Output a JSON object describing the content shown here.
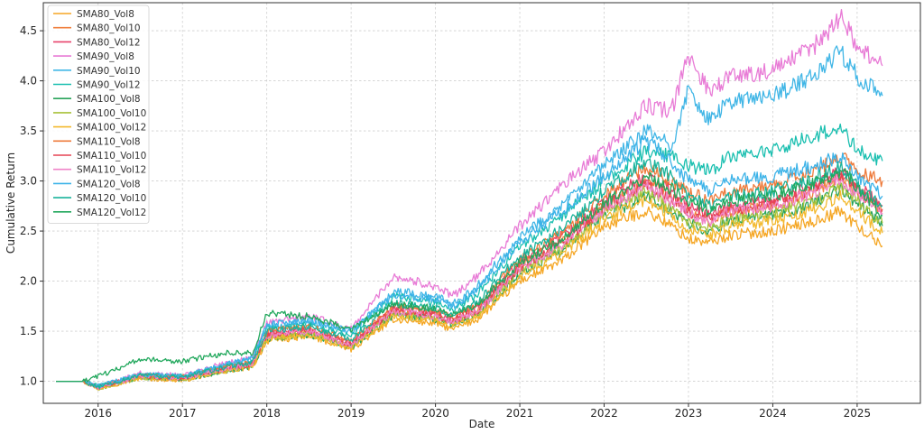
{
  "chart_data": {
    "type": "line",
    "title": "",
    "xlabel": "Date",
    "ylabel": "Cumulative Return",
    "xlim": [
      2015.35,
      2025.75
    ],
    "ylim": [
      0.78,
      4.78
    ],
    "x_ticks": [
      2016,
      2017,
      2018,
      2019,
      2020,
      2021,
      2022,
      2023,
      2024,
      2025
    ],
    "x_tick_labels": [
      "2016",
      "2017",
      "2018",
      "2019",
      "2020",
      "2021",
      "2022",
      "2023",
      "2024",
      "2025"
    ],
    "y_ticks": [
      1.0,
      1.5,
      2.0,
      2.5,
      3.0,
      3.5,
      4.0,
      4.5
    ],
    "y_tick_labels": [
      "1.0",
      "1.5",
      "2.0",
      "2.5",
      "3.0",
      "3.5",
      "4.0",
      "4.5"
    ],
    "grid": true,
    "legend_position": "top-left",
    "x": [
      2015.5,
      2015.83,
      2016.0,
      2016.5,
      2017.0,
      2017.5,
      2017.83,
      2018.0,
      2018.5,
      2019.0,
      2019.5,
      2020.0,
      2020.2,
      2020.5,
      2021.0,
      2021.5,
      2022.0,
      2022.5,
      2022.8,
      2023.0,
      2023.25,
      2023.5,
      2024.0,
      2024.5,
      2024.8,
      2025.0,
      2025.3
    ],
    "series": [
      {
        "name": "SMA80_Vol8",
        "color": "#f5a623",
        "values": [
          1.0,
          1.0,
          0.93,
          1.03,
          1.01,
          1.1,
          1.14,
          1.4,
          1.45,
          1.32,
          1.62,
          1.58,
          1.52,
          1.62,
          2.0,
          2.2,
          2.55,
          2.7,
          2.55,
          2.42,
          2.38,
          2.46,
          2.5,
          2.6,
          2.7,
          2.55,
          2.35
        ]
      },
      {
        "name": "SMA80_Vol10",
        "color": "#f07f3c",
        "values": [
          1.0,
          1.0,
          0.94,
          1.05,
          1.03,
          1.12,
          1.17,
          1.45,
          1.5,
          1.36,
          1.7,
          1.65,
          1.58,
          1.7,
          2.15,
          2.4,
          2.75,
          3.0,
          2.85,
          2.7,
          2.6,
          2.7,
          2.75,
          2.9,
          3.05,
          2.9,
          2.7
        ]
      },
      {
        "name": "SMA80_Vol12",
        "color": "#e8436b",
        "values": [
          1.0,
          1.0,
          0.94,
          1.06,
          1.04,
          1.13,
          1.18,
          1.48,
          1.52,
          1.38,
          1.72,
          1.68,
          1.62,
          1.74,
          2.2,
          2.45,
          2.8,
          3.05,
          2.9,
          2.75,
          2.65,
          2.75,
          2.8,
          2.95,
          3.1,
          2.95,
          2.75
        ]
      },
      {
        "name": "SMA90_Vol8",
        "color": "#e87bd6",
        "values": [
          1.0,
          1.0,
          0.95,
          1.08,
          1.06,
          1.18,
          1.24,
          1.58,
          1.65,
          1.52,
          2.05,
          1.95,
          1.85,
          2.05,
          2.55,
          2.95,
          3.3,
          3.75,
          3.7,
          4.25,
          3.9,
          4.05,
          4.1,
          4.35,
          4.65,
          4.35,
          4.15
        ]
      },
      {
        "name": "SMA90_Vol10",
        "color": "#41b6e6",
        "values": [
          1.0,
          1.0,
          0.95,
          1.07,
          1.05,
          1.16,
          1.22,
          1.55,
          1.6,
          1.48,
          1.9,
          1.85,
          1.78,
          1.95,
          2.45,
          2.75,
          3.15,
          3.5,
          3.35,
          3.9,
          3.6,
          3.8,
          3.85,
          4.05,
          4.3,
          4.05,
          3.85
        ]
      },
      {
        "name": "SMA90_Vol12",
        "color": "#1abfb0",
        "values": [
          1.0,
          1.0,
          0.95,
          1.06,
          1.05,
          1.15,
          1.2,
          1.52,
          1.57,
          1.46,
          1.84,
          1.8,
          1.72,
          1.88,
          2.35,
          2.65,
          3.0,
          3.3,
          3.25,
          3.15,
          3.1,
          3.25,
          3.3,
          3.45,
          3.55,
          3.3,
          3.2
        ]
      },
      {
        "name": "SMA100_Vol8",
        "color": "#29a35a",
        "values": [
          1.0,
          1.0,
          0.93,
          1.04,
          1.02,
          1.1,
          1.15,
          1.42,
          1.47,
          1.34,
          1.66,
          1.62,
          1.56,
          1.66,
          2.08,
          2.3,
          2.65,
          2.85,
          2.7,
          2.58,
          2.5,
          2.6,
          2.65,
          2.78,
          2.92,
          2.78,
          2.55
        ]
      },
      {
        "name": "SMA100_Vol10",
        "color": "#a8c23a",
        "values": [
          1.0,
          1.0,
          0.93,
          1.04,
          1.02,
          1.11,
          1.16,
          1.43,
          1.48,
          1.35,
          1.67,
          1.63,
          1.57,
          1.67,
          2.1,
          2.32,
          2.68,
          2.9,
          2.72,
          2.6,
          2.52,
          2.62,
          2.68,
          2.8,
          2.95,
          2.8,
          2.58
        ]
      },
      {
        "name": "SMA100_Vol12",
        "color": "#f3b92e",
        "values": [
          1.0,
          1.0,
          0.93,
          1.04,
          1.02,
          1.1,
          1.15,
          1.42,
          1.46,
          1.33,
          1.65,
          1.61,
          1.55,
          1.65,
          2.05,
          2.28,
          2.62,
          2.82,
          2.65,
          2.52,
          2.45,
          2.55,
          2.6,
          2.72,
          2.85,
          2.7,
          2.48
        ]
      },
      {
        "name": "SMA110_Vol8",
        "color": "#ee7a3a",
        "values": [
          1.0,
          1.0,
          0.94,
          1.06,
          1.04,
          1.14,
          1.19,
          1.5,
          1.55,
          1.4,
          1.75,
          1.7,
          1.64,
          1.76,
          2.22,
          2.48,
          2.85,
          3.15,
          3.0,
          2.9,
          2.8,
          2.9,
          2.95,
          3.1,
          3.25,
          3.1,
          3.0
        ]
      },
      {
        "name": "SMA110_Vol10",
        "color": "#e54353",
        "values": [
          1.0,
          1.0,
          0.94,
          1.05,
          1.03,
          1.12,
          1.17,
          1.46,
          1.51,
          1.37,
          1.71,
          1.66,
          1.6,
          1.71,
          2.14,
          2.38,
          2.74,
          2.98,
          2.82,
          2.7,
          2.62,
          2.72,
          2.78,
          2.92,
          3.06,
          2.92,
          2.72
        ]
      },
      {
        "name": "SMA110_Vol12",
        "color": "#ef83c8",
        "values": [
          1.0,
          1.0,
          0.94,
          1.05,
          1.03,
          1.12,
          1.17,
          1.45,
          1.5,
          1.36,
          1.7,
          1.65,
          1.59,
          1.7,
          2.12,
          2.36,
          2.72,
          2.95,
          2.8,
          2.68,
          2.6,
          2.7,
          2.75,
          2.88,
          3.02,
          2.88,
          2.68
        ]
      },
      {
        "name": "SMA120_Vol8",
        "color": "#3db3e8",
        "values": [
          1.0,
          1.0,
          0.95,
          1.07,
          1.05,
          1.17,
          1.23,
          1.56,
          1.62,
          1.5,
          1.86,
          1.82,
          1.75,
          1.9,
          2.4,
          2.7,
          3.05,
          3.4,
          3.2,
          3.0,
          2.9,
          3.0,
          3.05,
          3.15,
          3.25,
          3.05,
          2.85
        ]
      },
      {
        "name": "SMA120_Vol10",
        "color": "#19b39b",
        "values": [
          1.0,
          1.0,
          0.94,
          1.06,
          1.04,
          1.14,
          1.19,
          1.5,
          1.55,
          1.42,
          1.78,
          1.73,
          1.66,
          1.8,
          2.25,
          2.52,
          2.9,
          3.2,
          3.05,
          2.85,
          2.75,
          2.85,
          2.9,
          3.02,
          3.15,
          2.95,
          2.75
        ]
      },
      {
        "name": "SMA120_Vol12",
        "color": "#22a85d",
        "values": [
          1.0,
          1.0,
          1.05,
          1.22,
          1.2,
          1.28,
          1.28,
          1.68,
          1.65,
          1.52,
          1.78,
          1.72,
          1.66,
          1.76,
          2.18,
          2.42,
          2.78,
          3.05,
          2.92,
          2.8,
          2.7,
          2.8,
          2.85,
          2.98,
          3.1,
          2.95,
          2.65
        ]
      }
    ]
  }
}
